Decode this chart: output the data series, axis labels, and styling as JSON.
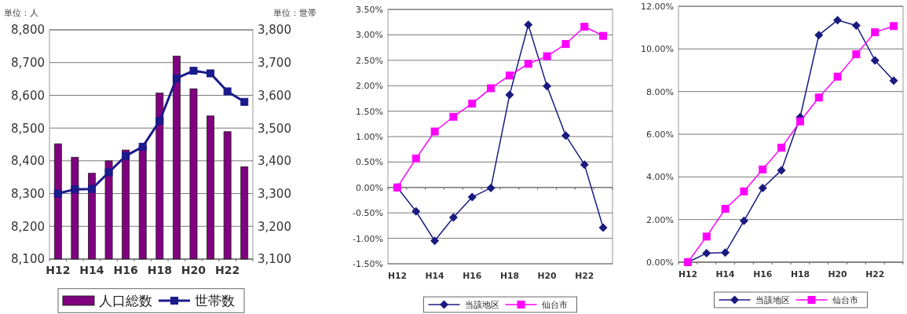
{
  "chart_data": [
    {
      "type": "bar",
      "categories": [
        "H12",
        null,
        "H14",
        null,
        "H16",
        null,
        "H18",
        null,
        "H20",
        null,
        "H22",
        null
      ],
      "ylabel": "単位：人",
      "y2label": "単位：世帯",
      "ylim": [
        8100,
        8800
      ],
      "yticks": [
        {
          "value": 8100,
          "label": "8,100"
        },
        {
          "value": 8200,
          "label": "8,200"
        },
        {
          "value": 8300,
          "label": "8,300"
        },
        {
          "value": 8400,
          "label": "8,400"
        },
        {
          "value": 8500,
          "label": "8,500"
        },
        {
          "value": 8600,
          "label": "8,600"
        },
        {
          "value": 8700,
          "label": "8,700"
        },
        {
          "value": 8800,
          "label": "8,800"
        }
      ],
      "y2lim": [
        3100,
        3800
      ],
      "y2ticks": [
        {
          "value": 3100,
          "label": "3,100"
        },
        {
          "value": 3200,
          "label": "3,200"
        },
        {
          "value": 3300,
          "label": "3,300"
        },
        {
          "value": 3400,
          "label": "3,400"
        },
        {
          "value": 3500,
          "label": "3,500"
        },
        {
          "value": 3600,
          "label": "3,600"
        },
        {
          "value": 3700,
          "label": "3,700"
        },
        {
          "value": 3800,
          "label": "3,800"
        }
      ],
      "grid": "y",
      "legend": "bottom",
      "series": [
        {
          "name": "人口総数",
          "color": "#800080",
          "values": [
            8452,
            8411,
            8362,
            8400,
            8433,
            8445,
            8607,
            8720,
            8620,
            8537,
            8489,
            8382
          ]
        },
        {
          "name": "世帯数",
          "type": "line",
          "axis": "y2",
          "marker": "square",
          "color": "#1a1a8c",
          "values": [
            3300,
            3313,
            3314,
            3365,
            3415,
            3443,
            3522,
            3652,
            3675,
            3667,
            3612,
            3580
          ]
        }
      ]
    },
    {
      "type": "line",
      "categories": [
        "H12",
        null,
        "H14",
        null,
        "H16",
        null,
        "H18",
        null,
        "H20",
        null,
        "H22",
        null
      ],
      "ylim": [
        -1.5,
        3.5
      ],
      "yticks": [
        {
          "value": -1.5,
          "label": "-1.50%"
        },
        {
          "value": -1,
          "label": "-1.00%"
        },
        {
          "value": -0.5,
          "label": "-0.50%"
        },
        {
          "value": 0,
          "label": "0.00%"
        },
        {
          "value": 0.5,
          "label": "0.50%"
        },
        {
          "value": 1,
          "label": "1.00%"
        },
        {
          "value": 1.5,
          "label": "1.50%"
        },
        {
          "value": 2,
          "label": "2.00%"
        },
        {
          "value": 2.5,
          "label": "2.50%"
        },
        {
          "value": 3,
          "label": "3.00%"
        },
        {
          "value": 3.5,
          "label": "3.50%"
        }
      ],
      "grid": "y",
      "legend": "bottom",
      "series": [
        {
          "name": "当該地区",
          "marker": "diamond",
          "color": "#1a1a80",
          "values": [
            0,
            -0.47,
            -1.05,
            -0.59,
            -0.19,
            -0.01,
            1.82,
            3.2,
            1.99,
            1.02,
            0.45,
            -0.79
          ]
        },
        {
          "name": "仙台市",
          "marker": "square",
          "color": "#ff00ff",
          "values": [
            0,
            0.57,
            1.1,
            1.39,
            1.65,
            1.95,
            2.2,
            2.43,
            2.58,
            2.82,
            3.16,
            2.98
          ]
        }
      ]
    },
    {
      "type": "line",
      "categories": [
        "H12",
        null,
        "H14",
        null,
        "H16",
        null,
        "H18",
        null,
        "H20",
        null,
        "H22",
        null
      ],
      "ylim": [
        0,
        12
      ],
      "yticks": [
        {
          "value": 0,
          "label": "0.00%"
        },
        {
          "value": 2,
          "label": "2.00%"
        },
        {
          "value": 4,
          "label": "4.00%"
        },
        {
          "value": 6,
          "label": "6.00%"
        },
        {
          "value": 8,
          "label": "8.00%"
        },
        {
          "value": 10,
          "label": "10.00%"
        },
        {
          "value": 12,
          "label": "12.00%"
        }
      ],
      "grid": "y",
      "legend": "bottom",
      "series": [
        {
          "name": "当該地区",
          "marker": "diamond",
          "color": "#1a1a80",
          "values": [
            0,
            0.42,
            0.45,
            1.94,
            3.48,
            4.31,
            6.8,
            10.65,
            11.35,
            11.1,
            9.46,
            8.51
          ]
        },
        {
          "name": "仙台市",
          "marker": "square",
          "color": "#ff00ff",
          "values": [
            0,
            1.2,
            2.5,
            3.32,
            4.35,
            5.37,
            6.6,
            7.72,
            8.7,
            9.75,
            10.78,
            11.07
          ]
        }
      ]
    }
  ]
}
